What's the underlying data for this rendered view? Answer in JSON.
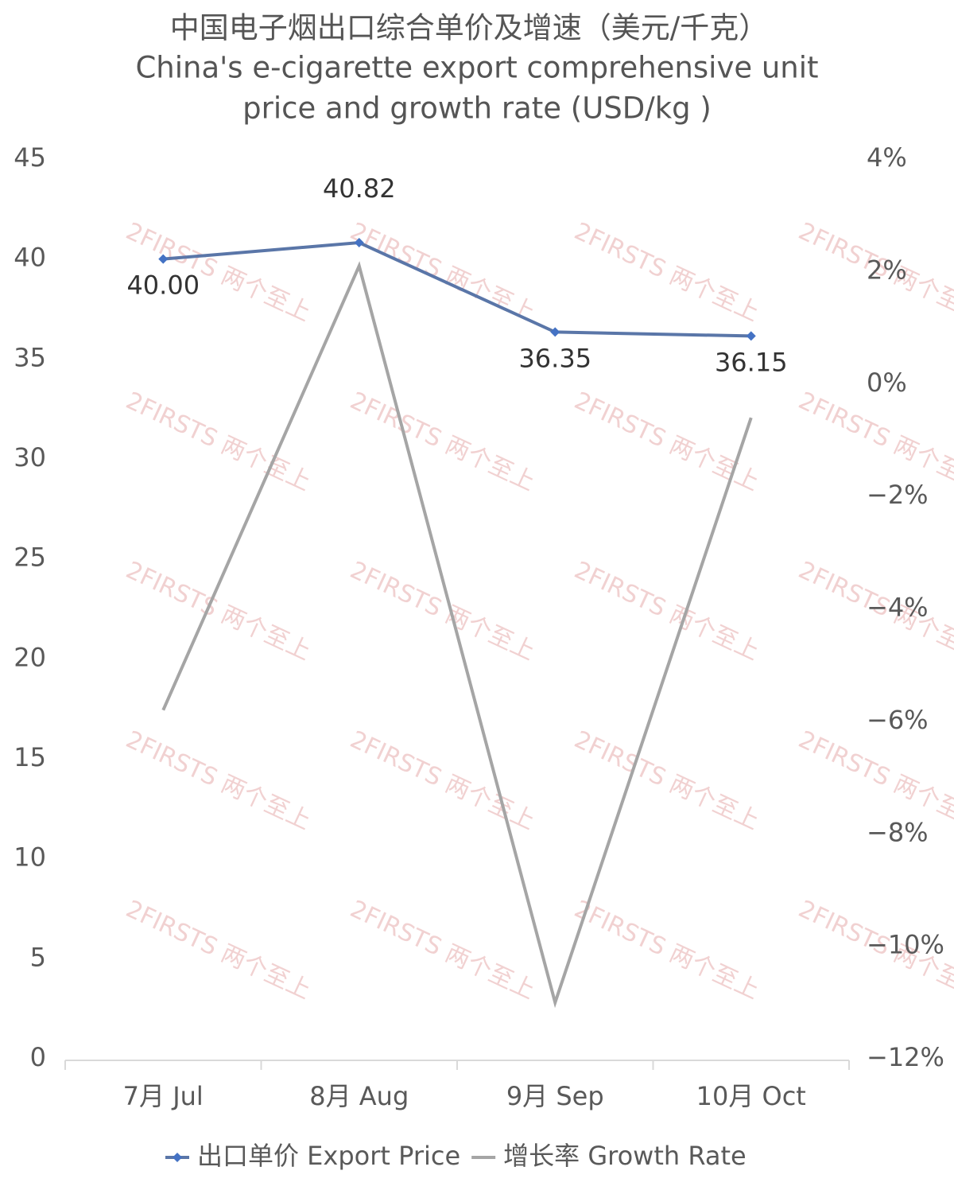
{
  "chart_data": {
    "type": "line",
    "title": [
      "中国电子烟出口综合单价及增速（美元/千克）",
      "China's e-cigarette export comprehensive unit",
      "price and growth rate (USD/kg )"
    ],
    "watermark": "2FIRSTS 两个至上",
    "categories": [
      "7月 Jul",
      "8月 Aug",
      "9月 Sep",
      "10月 Oct"
    ],
    "series": [
      {
        "name": "出口单价 Export Price",
        "color": "#5a76a8",
        "marker_color": "#4472c4",
        "values": [
          40.0,
          40.82,
          36.35,
          36.15
        ],
        "value_labels": [
          "40.00",
          "40.82",
          "36.35",
          "36.15"
        ]
      },
      {
        "name": "增长率 Growth Rate",
        "color": "#a5a5a5",
        "axis": "y2",
        "values": [
          -5.8,
          2.1,
          -11.0,
          -0.6
        ]
      }
    ],
    "ylim": [
      0,
      45
    ],
    "yticks": [
      0,
      5,
      10,
      15,
      20,
      25,
      30,
      35,
      40,
      45
    ],
    "y2lim": [
      -12,
      4
    ],
    "y2ticks": [
      {
        "value": -12,
        "label": "−12%"
      },
      {
        "value": -10,
        "label": "−10%"
      },
      {
        "value": -8,
        "label": "−8%"
      },
      {
        "value": -6,
        "label": "−6%"
      },
      {
        "value": -4,
        "label": "−4%"
      },
      {
        "value": -2,
        "label": "−2%"
      },
      {
        "value": 0,
        "label": "0%"
      },
      {
        "value": 2,
        "label": "2%"
      },
      {
        "value": 4,
        "label": "4%"
      }
    ],
    "grid": false,
    "legend": "bottom"
  }
}
